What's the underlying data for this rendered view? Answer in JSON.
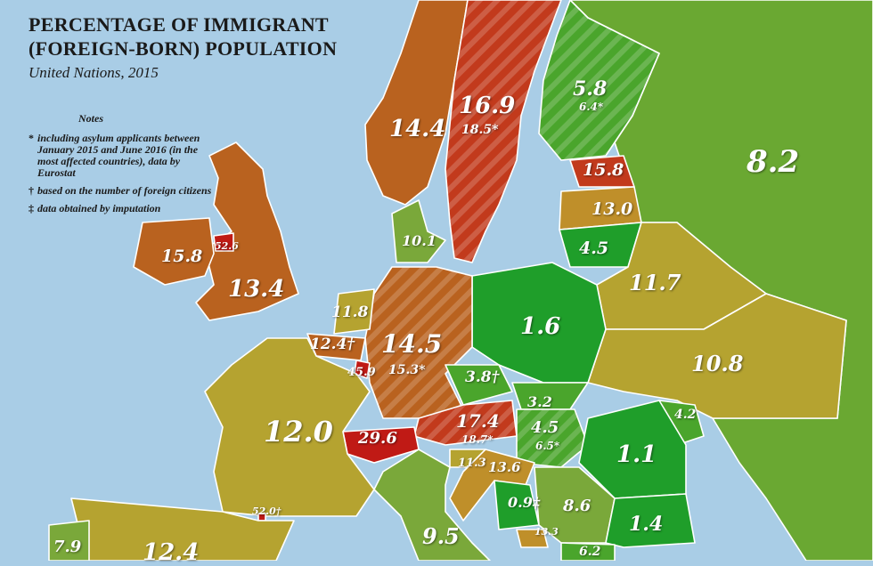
{
  "title_lines": [
    "PERCENTAGE OF IMMIGRANT",
    "(FOREIGN-BORN) POPULATION"
  ],
  "subtitle": "United Nations, 2015",
  "notes": {
    "heading": "Notes",
    "items": [
      {
        "symbol": "*",
        "text": "including asylum applicants between January 2015 and June 2016 (in the most affected countries), data by Eurostat"
      },
      {
        "symbol": "†",
        "text": "based on the number of foreign citizens"
      },
      {
        "symbol": "‡",
        "text": "data obtained by imputation"
      }
    ]
  },
  "colors": {
    "sea": "#a9cde6",
    "border": "#ffffff",
    "scale": [
      "#1f9e2a",
      "#4aa52c",
      "#7aa83a",
      "#b5a330",
      "#bf8f2a",
      "#b9621f",
      "#c23a1c",
      "#c01a15"
    ]
  },
  "labels": {
    "russia": "8.2",
    "sweden": "16.9",
    "sweden_asylum": "18.5*",
    "norway": "14.4",
    "finland": "5.8",
    "finland_asylum": "6.4*",
    "estonia": "15.8",
    "latvia": "13.0",
    "lithuania": "4.5",
    "denmark": "10.1",
    "ireland": "15.8",
    "ni": "52.6",
    "uk": "13.4",
    "belarus": "11.7",
    "ukraine": "10.8",
    "poland": "1.6",
    "germany": "14.5",
    "germany_asylum": "15.3*",
    "netherlands": "11.8",
    "belgium": "12.4†",
    "luxembourg": "45.9",
    "czech": "3.8†",
    "slovakia": "3.2",
    "austria": "17.4",
    "austria_asylum": "18.7*",
    "hungary": "4.5",
    "hungary_asylum": "6.5*",
    "switzerland": "29.6",
    "france": "12.0",
    "andorra": "52.0†",
    "moldova": "4.2",
    "romania": "1.1",
    "slovenia": "11.3",
    "croatia": "13.6",
    "bosnia": "0.9‡",
    "serbia": "8.6",
    "bulgaria": "1.4",
    "montenegro": "13.3",
    "macedonia": "6.2",
    "italy": "9.5",
    "portugal": "7.9",
    "spain": "12.4"
  }
}
